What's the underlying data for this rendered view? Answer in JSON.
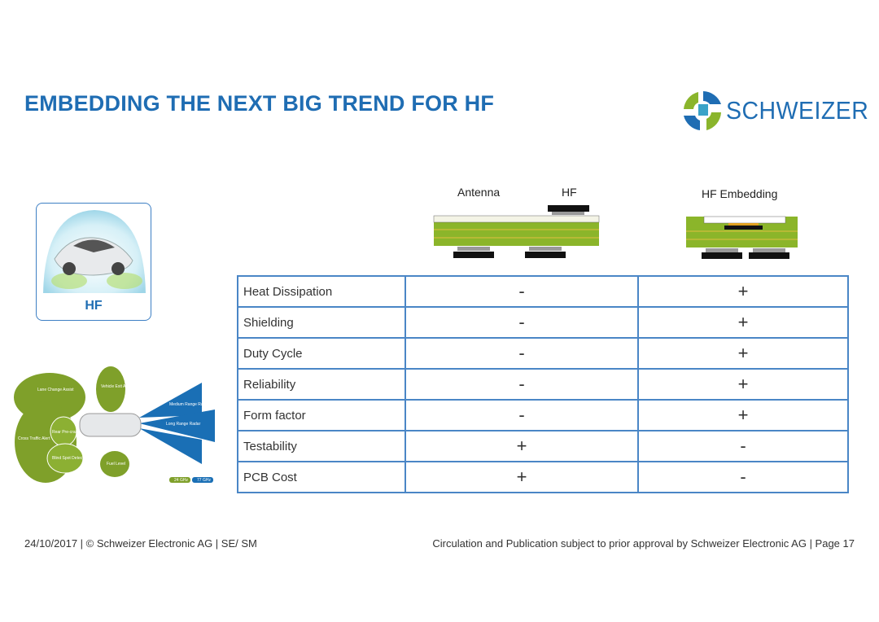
{
  "header": {
    "title": "EMBEDDING THE NEXT BIG TREND FOR HF",
    "logo": "SCHWEIZER"
  },
  "image_card": {
    "label": "HF"
  },
  "radar_diagram": {
    "labels": [
      "Lane Change Assist",
      "Vehicle Exit Assistant",
      "Rear Pre-crash",
      "Cross Traffic Alert",
      "Blind Spot Detection",
      "Fuel Level",
      "Medium Range Radar",
      "Long Range Radar"
    ],
    "legend": [
      "24 GHz",
      "77 GHz"
    ]
  },
  "pcb_diagrams": {
    "antenna": "Antenna",
    "hf": "HF",
    "embedding": "HF Embedding"
  },
  "table": {
    "rows": [
      [
        "Heat Dissipation",
        "-",
        "+"
      ],
      [
        "Shielding",
        "-",
        "+"
      ],
      [
        "Duty Cycle",
        "-",
        "+"
      ],
      [
        "Reliability",
        "-",
        "+"
      ],
      [
        "Form factor",
        "-",
        "+"
      ],
      [
        "Testability",
        "+",
        "-"
      ],
      [
        "PCB Cost",
        "+",
        "-"
      ]
    ]
  },
  "footer": {
    "left": "24/10/2017 | © Schweizer Electronic AG | SE/ SM",
    "right": "Circulation and Publication subject to prior approval by Schweizer Electronic AG | Page 17"
  }
}
